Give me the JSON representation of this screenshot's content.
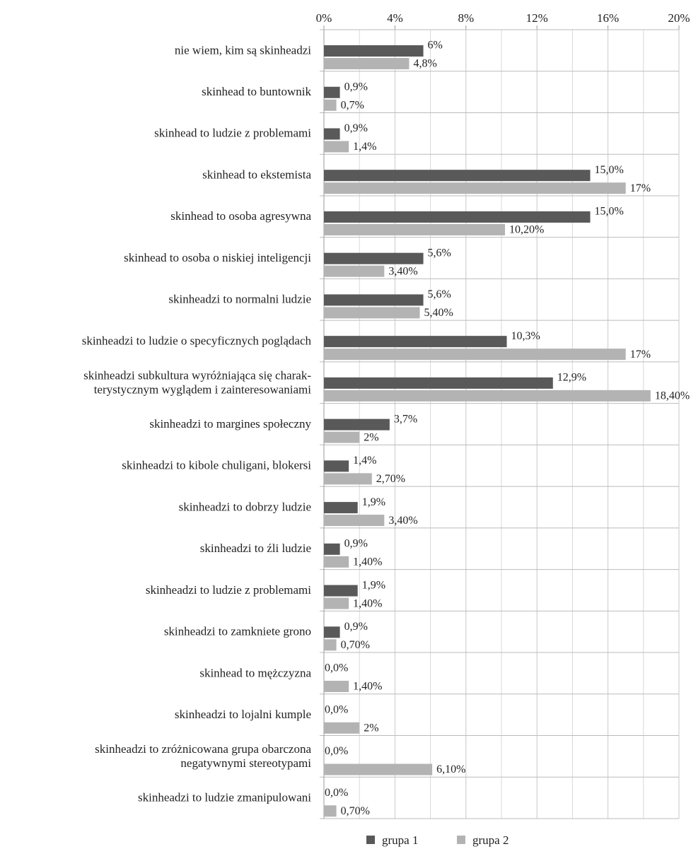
{
  "chart_data": {
    "type": "hbar",
    "categories": [
      "nie wiem, kim są skinheadzi",
      "skinhead to buntownik",
      "skinhead to ludzie z problemami",
      "skinhead to ekstemista",
      "skinhead to osoba agresywna",
      "skinhead to osoba o niskiej inteligencji",
      "skinheadzi to normalni ludzie",
      "skinheadzi to ludzie o specyficznych poglądach",
      "skinheadzi  subkultura wyróżniająca się charak-\nterystycznym wyglądem i zainteresowaniami",
      "skinheadzi to margines społeczny",
      "skinheadzi to kibole chuligani, blokersi",
      "skinheadzi to dobrzy ludzie",
      "skinheadzi to źli ludzie",
      "skinheadzi to ludzie z problemami",
      "skinheadzi to zamkniete grono",
      "skinhead to mężczyzna",
      "skinheadzi to lojalni kumple",
      "skinheadzi to zróżnicowana grupa obarczona\nnegatywnymi stereotypami",
      "skinheadzi to ludzie zmanipulowani"
    ],
    "series": [
      {
        "name": "grupa 1",
        "color": "#595959",
        "values": [
          5.6,
          0.9,
          0.9,
          15.0,
          15.0,
          5.6,
          5.6,
          10.3,
          12.9,
          3.7,
          1.4,
          1.9,
          0.9,
          1.9,
          0.9,
          0,
          0,
          0,
          0
        ],
        "value_labels": [
          "6%",
          "0,9%",
          "0,9%",
          "15,0%",
          "15,0%",
          "5,6%",
          "5,6%",
          "10,3%",
          "12,9%",
          "3,7%",
          "1,4%",
          "1,9%",
          "0,9%",
          "1,9%",
          "0,9%",
          "0,0%",
          "0,0%",
          "0,0%",
          "0,0%"
        ]
      },
      {
        "name": "grupa 2",
        "color": "#b3b3b3",
        "values": [
          4.8,
          0.7,
          1.4,
          17,
          10.2,
          3.4,
          5.4,
          17,
          18.4,
          2,
          2.7,
          3.4,
          1.4,
          1.4,
          0.7,
          1.4,
          2,
          6.1,
          0.7
        ],
        "value_labels": [
          "4,8%",
          "0,7%",
          "1,4%",
          "17%",
          "10,20%",
          "3,40%",
          "5,40%",
          "17%",
          "18,40%",
          "2%",
          "2,70%",
          "3,40%",
          "1,40%",
          "1,40%",
          "0,70%",
          "1,40%",
          "2%",
          "6,10%",
          "0,70%"
        ]
      }
    ],
    "xlim": [
      0,
      20
    ],
    "xticks": [
      {
        "value": 0,
        "label": "0%"
      },
      {
        "value": 4,
        "label": "4%"
      },
      {
        "value": 8,
        "label": "8%"
      },
      {
        "value": 12,
        "label": "12%"
      },
      {
        "value": 16,
        "label": "16%"
      },
      {
        "value": 20,
        "label": "20%"
      }
    ],
    "minor_xticks": [
      2,
      6,
      10,
      14,
      18
    ],
    "grid": true,
    "legend": "bottom"
  }
}
